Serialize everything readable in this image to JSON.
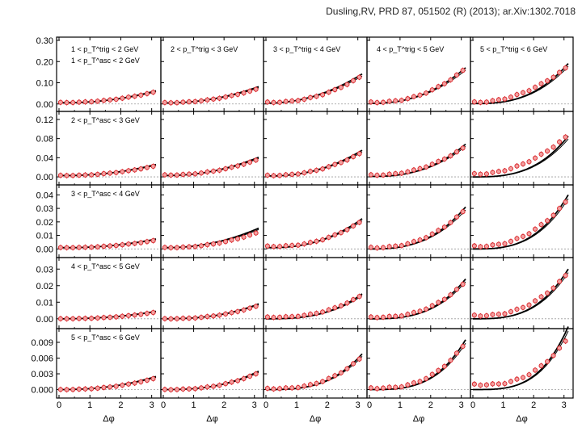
{
  "citation": "Dusling,RV,  PRD 87, 051502 (R) (2013); ar.Xiv:1302.7018",
  "chart_data": {
    "type": "scatter",
    "layout": "grid 5 rows x 5 columns",
    "xlabel": "Δφ",
    "xlim": [
      0,
      3.14
    ],
    "xticks": [
      0,
      1,
      2,
      3
    ],
    "column_labels": [
      "1 < p_T^trig < 2 GeV",
      "2 < p_T^trig < 3 GeV",
      "3 < p_T^trig < 4 GeV",
      "4 < p_T^trig < 5 GeV",
      "5 < p_T^trig < 6 GeV"
    ],
    "row_labels": [
      "1 < p_T^asc < 2 GeV",
      "2 < p_T^asc < 3 GeV",
      "3 < p_T^asc < 4 GeV",
      "4 < p_T^asc < 5 GeV",
      "5 < p_T^asc < 6 GeV"
    ],
    "rows": [
      {
        "ylim": [
          -0.02,
          0.3
        ],
        "yticks": [
          0.0,
          0.1,
          0.2,
          0.3
        ],
        "ytick_labels": [
          "0.00",
          "0.10",
          "0.20",
          "0.30"
        ]
      },
      {
        "ylim": [
          -0.01,
          0.13
        ],
        "yticks": [
          0.0,
          0.04,
          0.08,
          0.12
        ],
        "ytick_labels": [
          "0.00",
          "0.04",
          "0.08",
          "0.12"
        ]
      },
      {
        "ylim": [
          -0.004,
          0.045
        ],
        "yticks": [
          0.0,
          0.01,
          0.02,
          0.03,
          0.04
        ],
        "ytick_labels": [
          "0.00",
          "0.01",
          "0.02",
          "0.03",
          "0.04"
        ]
      },
      {
        "ylim": [
          -0.004,
          0.035
        ],
        "yticks": [
          0.0,
          0.01,
          0.02,
          0.03
        ],
        "ytick_labels": [
          "0.00",
          "0.01",
          "0.02",
          "0.03"
        ]
      },
      {
        "ylim": [
          -0.001,
          0.011
        ],
        "yticks": [
          0.0,
          0.003,
          0.006,
          0.009
        ],
        "ytick_labels": [
          "0.000",
          "0.003",
          "0.006",
          "0.009"
        ]
      }
    ],
    "points_x": [
      0.05,
      0.25,
      0.45,
      0.65,
      0.85,
      1.05,
      1.25,
      1.45,
      1.65,
      1.85,
      2.05,
      2.25,
      2.45,
      2.65,
      2.85,
      3.05
    ],
    "curve_shapes": [
      [
        {
          "base": 0.006,
          "amp": 0.06,
          "pow": 2.0
        },
        {
          "base": 0.005,
          "amp": 0.08,
          "pow": 2.0
        },
        {
          "base": 0.004,
          "amp": 0.14,
          "pow": 2.0
        },
        {
          "base": 0.003,
          "amp": 0.17,
          "pow": 2.3
        },
        {
          "base": 0.002,
          "amp": 0.19,
          "pow": 2.7
        }
      ],
      [
        {
          "base": 0.003,
          "amp": 0.025,
          "pow": 2.0
        },
        {
          "base": 0.003,
          "amp": 0.04,
          "pow": 2.0
        },
        {
          "base": 0.002,
          "amp": 0.055,
          "pow": 2.2
        },
        {
          "base": 0.001,
          "amp": 0.068,
          "pow": 2.5
        },
        {
          "base": 0.0,
          "amp": 0.085,
          "pow": 2.9
        }
      ],
      [
        {
          "base": 0.001,
          "amp": 0.007,
          "pow": 2.0
        },
        {
          "base": 0.001,
          "amp": 0.015,
          "pow": 2.0
        },
        {
          "base": 0.001,
          "amp": 0.022,
          "pow": 2.3
        },
        {
          "base": 0.0,
          "amp": 0.031,
          "pow": 2.7
        },
        {
          "base": 0.0,
          "amp": 0.04,
          "pow": 3.0
        }
      ],
      [
        {
          "base": 0.0,
          "amp": 0.0045,
          "pow": 2.3
        },
        {
          "base": 0.0,
          "amp": 0.009,
          "pow": 2.5
        },
        {
          "base": 0.0,
          "amp": 0.015,
          "pow": 2.8
        },
        {
          "base": 0.0,
          "amp": 0.024,
          "pow": 3.0
        },
        {
          "base": 0.0,
          "amp": 0.03,
          "pow": 3.1
        }
      ],
      [
        {
          "base": 0.0,
          "amp": 0.0025,
          "pow": 2.3
        },
        {
          "base": 0.0,
          "amp": 0.0035,
          "pow": 2.6
        },
        {
          "base": 0.0,
          "amp": 0.0068,
          "pow": 3.0
        },
        {
          "base": 0.0,
          "amp": 0.0095,
          "pow": 3.2
        },
        {
          "base": 0.0,
          "amp": 0.012,
          "pow": 3.4
        }
      ]
    ],
    "data_shapes": [
      [
        {
          "base": 0.007,
          "amp": 0.055,
          "pow": 2.0
        },
        {
          "base": 0.006,
          "amp": 0.07,
          "pow": 2.0
        },
        {
          "base": 0.008,
          "amp": 0.13,
          "pow": 2.2
        },
        {
          "base": 0.008,
          "amp": 0.165,
          "pow": 2.3
        },
        {
          "base": 0.008,
          "amp": 0.175,
          "pow": 2.0
        }
      ],
      [
        {
          "base": 0.003,
          "amp": 0.022,
          "pow": 2.0
        },
        {
          "base": 0.004,
          "amp": 0.035,
          "pow": 2.0
        },
        {
          "base": 0.003,
          "amp": 0.05,
          "pow": 2.2
        },
        {
          "base": 0.004,
          "amp": 0.062,
          "pow": 2.2
        },
        {
          "base": 0.006,
          "amp": 0.085,
          "pow": 2.0
        }
      ],
      [
        {
          "base": 0.001,
          "amp": 0.006,
          "pow": 2.0
        },
        {
          "base": 0.001,
          "amp": 0.012,
          "pow": 2.1
        },
        {
          "base": 0.002,
          "amp": 0.02,
          "pow": 2.3
        },
        {
          "base": 0.001,
          "amp": 0.029,
          "pow": 2.4
        },
        {
          "base": 0.002,
          "amp": 0.036,
          "pow": 2.3
        }
      ],
      [
        {
          "base": 0.0,
          "amp": 0.004,
          "pow": 2.3
        },
        {
          "base": 0.0,
          "amp": 0.008,
          "pow": 2.4
        },
        {
          "base": 0.001,
          "amp": 0.014,
          "pow": 2.5
        },
        {
          "base": 0.001,
          "amp": 0.022,
          "pow": 2.6
        },
        {
          "base": 0.002,
          "amp": 0.027,
          "pow": 2.4
        }
      ],
      [
        {
          "base": 0.0,
          "amp": 0.0022,
          "pow": 2.3
        },
        {
          "base": 0.0,
          "amp": 0.0032,
          "pow": 2.5
        },
        {
          "base": 0.0002,
          "amp": 0.0062,
          "pow": 2.7
        },
        {
          "base": 0.0003,
          "amp": 0.0088,
          "pow": 2.8
        },
        {
          "base": 0.001,
          "amp": 0.0095,
          "pow": 2.6
        }
      ]
    ],
    "colors": {
      "data_marker": "#d9262b",
      "data_fill": "#f2a0a0",
      "curve": "#000000",
      "zero_line": "#9a9a9a"
    }
  }
}
